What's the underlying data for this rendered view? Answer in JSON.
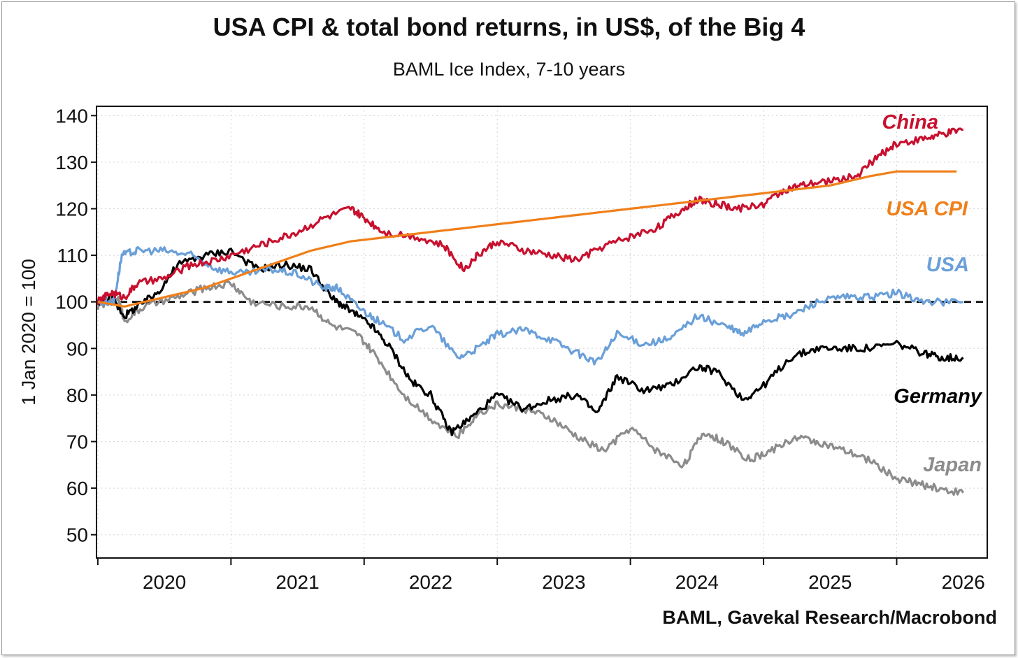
{
  "chart_data": {
    "type": "line",
    "title": "USA CPI & total bond returns, in US$, of the Big 4",
    "subtitle": "BAML Ice Index, 7-10 years",
    "ylabel": "1 Jan 2020 = 100",
    "source": "BAML, Gavekal Research/Macrobond",
    "ylim": [
      45,
      142
    ],
    "xlim": [
      2019.99,
      2026.68
    ],
    "y_ticks": [
      50,
      60,
      70,
      80,
      90,
      100,
      110,
      120,
      130,
      140
    ],
    "x_tick_labels": [
      "2020",
      "2021",
      "2022",
      "2023",
      "2024",
      "2025",
      "2026"
    ],
    "reference_line": 100,
    "grid": true,
    "legend": "inline labels at right",
    "series": [
      {
        "name": "China",
        "color": "#c8102e",
        "points": [
          [
            2020.0,
            100
          ],
          [
            2020.1,
            102
          ],
          [
            2020.2,
            101
          ],
          [
            2020.3,
            104
          ],
          [
            2020.5,
            105
          ],
          [
            2020.7,
            108
          ],
          [
            2020.9,
            109
          ],
          [
            2021.1,
            111
          ],
          [
            2021.3,
            113
          ],
          [
            2021.5,
            115
          ],
          [
            2021.7,
            118
          ],
          [
            2021.9,
            120
          ],
          [
            2022.0,
            118
          ],
          [
            2022.15,
            115
          ],
          [
            2022.4,
            114
          ],
          [
            2022.6,
            112
          ],
          [
            2022.75,
            107
          ],
          [
            2022.85,
            110
          ],
          [
            2023.0,
            113
          ],
          [
            2023.2,
            111
          ],
          [
            2023.4,
            110
          ],
          [
            2023.6,
            109
          ],
          [
            2023.8,
            112
          ],
          [
            2024.0,
            114
          ],
          [
            2024.2,
            116
          ],
          [
            2024.35,
            119
          ],
          [
            2024.5,
            122
          ],
          [
            2024.65,
            121
          ],
          [
            2024.8,
            120
          ],
          [
            2025.0,
            121
          ],
          [
            2025.15,
            124
          ],
          [
            2025.3,
            125
          ],
          [
            2025.5,
            126
          ],
          [
            2025.7,
            127
          ],
          [
            2025.85,
            131
          ],
          [
            2026.0,
            134
          ],
          [
            2026.2,
            135
          ],
          [
            2026.35,
            136
          ],
          [
            2026.5,
            137
          ]
        ]
      },
      {
        "name": "USA CPI",
        "color": "#f07f1a",
        "points": [
          [
            2020.0,
            100
          ],
          [
            2020.2,
            99
          ],
          [
            2020.5,
            101
          ],
          [
            2020.8,
            103
          ],
          [
            2021.0,
            105
          ],
          [
            2021.3,
            108
          ],
          [
            2021.6,
            111
          ],
          [
            2021.9,
            113
          ],
          [
            2022.2,
            114
          ],
          [
            2022.5,
            115
          ],
          [
            2022.8,
            116
          ],
          [
            2023.1,
            117
          ],
          [
            2023.4,
            118
          ],
          [
            2023.7,
            119
          ],
          [
            2024.0,
            120
          ],
          [
            2024.3,
            121
          ],
          [
            2024.6,
            122
          ],
          [
            2024.9,
            123
          ],
          [
            2025.2,
            124
          ],
          [
            2025.5,
            125
          ],
          [
            2025.8,
            127
          ],
          [
            2026.0,
            128
          ],
          [
            2026.2,
            128
          ],
          [
            2026.45,
            128
          ]
        ]
      },
      {
        "name": "USA",
        "color": "#6a9fd8",
        "points": [
          [
            2020.0,
            100
          ],
          [
            2020.12,
            100
          ],
          [
            2020.18,
            110
          ],
          [
            2020.3,
            111
          ],
          [
            2020.5,
            111
          ],
          [
            2020.7,
            110
          ],
          [
            2020.9,
            107
          ],
          [
            2021.1,
            106
          ],
          [
            2021.3,
            107
          ],
          [
            2021.5,
            106
          ],
          [
            2021.7,
            103
          ],
          [
            2021.8,
            103
          ],
          [
            2021.95,
            99
          ],
          [
            2022.1,
            96
          ],
          [
            2022.3,
            92
          ],
          [
            2022.5,
            95
          ],
          [
            2022.7,
            88
          ],
          [
            2022.85,
            90
          ],
          [
            2023.0,
            93
          ],
          [
            2023.2,
            94
          ],
          [
            2023.4,
            92
          ],
          [
            2023.6,
            89
          ],
          [
            2023.75,
            87
          ],
          [
            2023.9,
            93
          ],
          [
            2024.1,
            91
          ],
          [
            2024.3,
            92
          ],
          [
            2024.5,
            97
          ],
          [
            2024.7,
            95
          ],
          [
            2024.85,
            93
          ],
          [
            2025.0,
            96
          ],
          [
            2025.2,
            97
          ],
          [
            2025.4,
            100
          ],
          [
            2025.6,
            101
          ],
          [
            2025.8,
            101
          ],
          [
            2026.0,
            102
          ],
          [
            2026.2,
            100
          ],
          [
            2026.5,
            100
          ]
        ]
      },
      {
        "name": "Germany",
        "color": "#000000",
        "points": [
          [
            2020.0,
            100
          ],
          [
            2020.1,
            101
          ],
          [
            2020.2,
            97
          ],
          [
            2020.3,
            99
          ],
          [
            2020.45,
            102
          ],
          [
            2020.6,
            108
          ],
          [
            2020.8,
            110
          ],
          [
            2021.0,
            111
          ],
          [
            2021.2,
            107
          ],
          [
            2021.4,
            108
          ],
          [
            2021.6,
            107
          ],
          [
            2021.75,
            101
          ],
          [
            2021.9,
            98
          ],
          [
            2022.05,
            95
          ],
          [
            2022.2,
            90
          ],
          [
            2022.35,
            83
          ],
          [
            2022.5,
            80
          ],
          [
            2022.65,
            72
          ],
          [
            2022.8,
            75
          ],
          [
            2023.0,
            80
          ],
          [
            2023.2,
            77
          ],
          [
            2023.4,
            79
          ],
          [
            2023.6,
            80
          ],
          [
            2023.75,
            76
          ],
          [
            2023.9,
            84
          ],
          [
            2024.1,
            81
          ],
          [
            2024.3,
            82
          ],
          [
            2024.5,
            86
          ],
          [
            2024.65,
            85
          ],
          [
            2024.85,
            79
          ],
          [
            2025.0,
            82
          ],
          [
            2025.2,
            88
          ],
          [
            2025.4,
            90
          ],
          [
            2025.6,
            90
          ],
          [
            2025.8,
            90
          ],
          [
            2026.0,
            91
          ],
          [
            2026.2,
            89
          ],
          [
            2026.35,
            88
          ],
          [
            2026.5,
            88
          ]
        ]
      },
      {
        "name": "Japan",
        "color": "#8c8c8c",
        "points": [
          [
            2020.0,
            99
          ],
          [
            2020.15,
            101
          ],
          [
            2020.2,
            96
          ],
          [
            2020.35,
            99
          ],
          [
            2020.6,
            101
          ],
          [
            2020.8,
            103
          ],
          [
            2021.0,
            104
          ],
          [
            2021.15,
            100
          ],
          [
            2021.4,
            99
          ],
          [
            2021.6,
            99
          ],
          [
            2021.75,
            95
          ],
          [
            2021.95,
            93
          ],
          [
            2022.1,
            88
          ],
          [
            2022.3,
            80
          ],
          [
            2022.5,
            75
          ],
          [
            2022.7,
            71
          ],
          [
            2022.85,
            76
          ],
          [
            2023.0,
            78
          ],
          [
            2023.2,
            77
          ],
          [
            2023.4,
            75
          ],
          [
            2023.6,
            71
          ],
          [
            2023.8,
            68
          ],
          [
            2024.0,
            73
          ],
          [
            2024.2,
            68
          ],
          [
            2024.4,
            65
          ],
          [
            2024.55,
            72
          ],
          [
            2024.7,
            70
          ],
          [
            2024.9,
            66
          ],
          [
            2025.05,
            68
          ],
          [
            2025.25,
            71
          ],
          [
            2025.4,
            70
          ],
          [
            2025.6,
            68
          ],
          [
            2025.8,
            66
          ],
          [
            2026.0,
            62
          ],
          [
            2026.15,
            61
          ],
          [
            2026.3,
            60
          ],
          [
            2026.5,
            59
          ]
        ]
      }
    ]
  }
}
